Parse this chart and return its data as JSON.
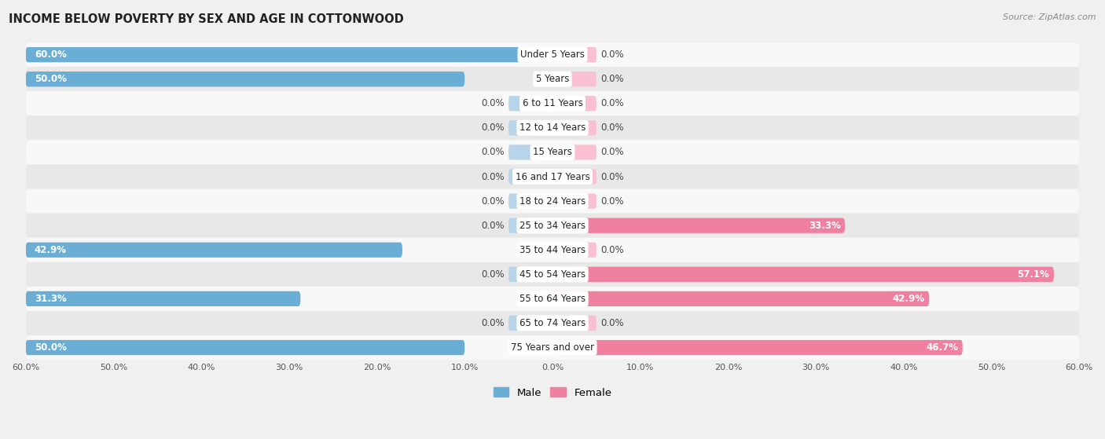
{
  "title": "INCOME BELOW POVERTY BY SEX AND AGE IN COTTONWOOD",
  "source": "Source: ZipAtlas.com",
  "categories": [
    "Under 5 Years",
    "5 Years",
    "6 to 11 Years",
    "12 to 14 Years",
    "15 Years",
    "16 and 17 Years",
    "18 to 24 Years",
    "25 to 34 Years",
    "35 to 44 Years",
    "45 to 54 Years",
    "55 to 64 Years",
    "65 to 74 Years",
    "75 Years and over"
  ],
  "male": [
    60.0,
    50.0,
    0.0,
    0.0,
    0.0,
    0.0,
    0.0,
    0.0,
    42.9,
    0.0,
    31.3,
    0.0,
    50.0
  ],
  "female": [
    0.0,
    0.0,
    0.0,
    0.0,
    0.0,
    0.0,
    0.0,
    33.3,
    0.0,
    57.1,
    42.9,
    0.0,
    46.7
  ],
  "male_bar_color": "#6aaed6",
  "female_bar_color": "#f080a0",
  "male_stub_color": "#b8d4e8",
  "female_stub_color": "#f8c0d0",
  "axis_max": 60.0,
  "stub_size": 5.0,
  "bg_color": "#f0f0f0",
  "row_color_odd": "#f8f8f8",
  "row_color_even": "#e8e8e8",
  "title_fontsize": 10.5,
  "label_fontsize": 8.5,
  "cat_fontsize": 8.5,
  "tick_fontsize": 8,
  "source_fontsize": 8,
  "bar_height": 0.62
}
